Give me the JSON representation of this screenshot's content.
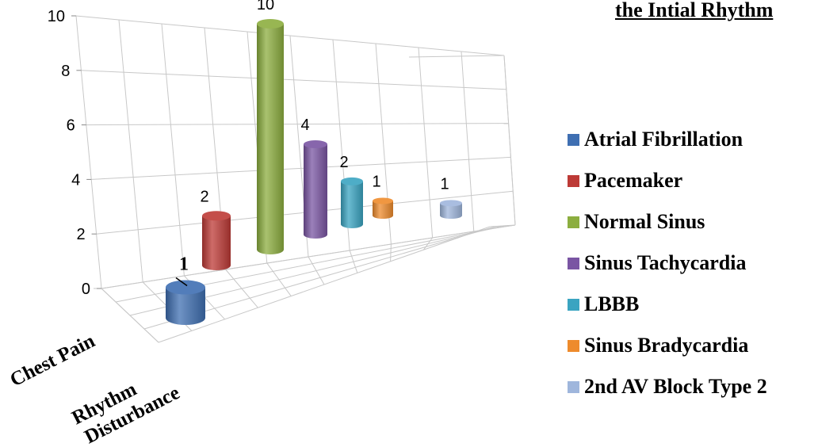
{
  "chart_data": {
    "type": "bar",
    "style": "3d-cylinder",
    "title": "the Intial Rhythm",
    "categories": [
      "Chest Pain",
      "Rhythm",
      "Disturbance"
    ],
    "yticks": [
      "0",
      "2",
      "4",
      "6",
      "8",
      "10"
    ],
    "ylim": [
      0,
      10
    ],
    "grid": true,
    "legend_position": "right",
    "series": [
      {
        "name": "Atrial Fibrillation",
        "value": 1,
        "label": "1",
        "color": "#3f6fb2"
      },
      {
        "name": "Pacemaker",
        "value": 2,
        "label": "2",
        "color": "#bd3a36"
      },
      {
        "name": "Normal Sinus",
        "value": 10,
        "label": "10",
        "color": "#8cae3f"
      },
      {
        "name": "Sinus Tachycardia",
        "value": 4,
        "label": "4",
        "color": "#7a55a3"
      },
      {
        "name": "LBBB",
        "value": 2,
        "label": "2",
        "color": "#3aa4c1"
      },
      {
        "name": "Sinus Bradycardia",
        "value": 1,
        "label": "1",
        "color": "#ee8b2c"
      },
      {
        "name": "2nd AV Block Type 2",
        "value": 1,
        "label": "1",
        "color": "#9fb6dc"
      }
    ]
  }
}
